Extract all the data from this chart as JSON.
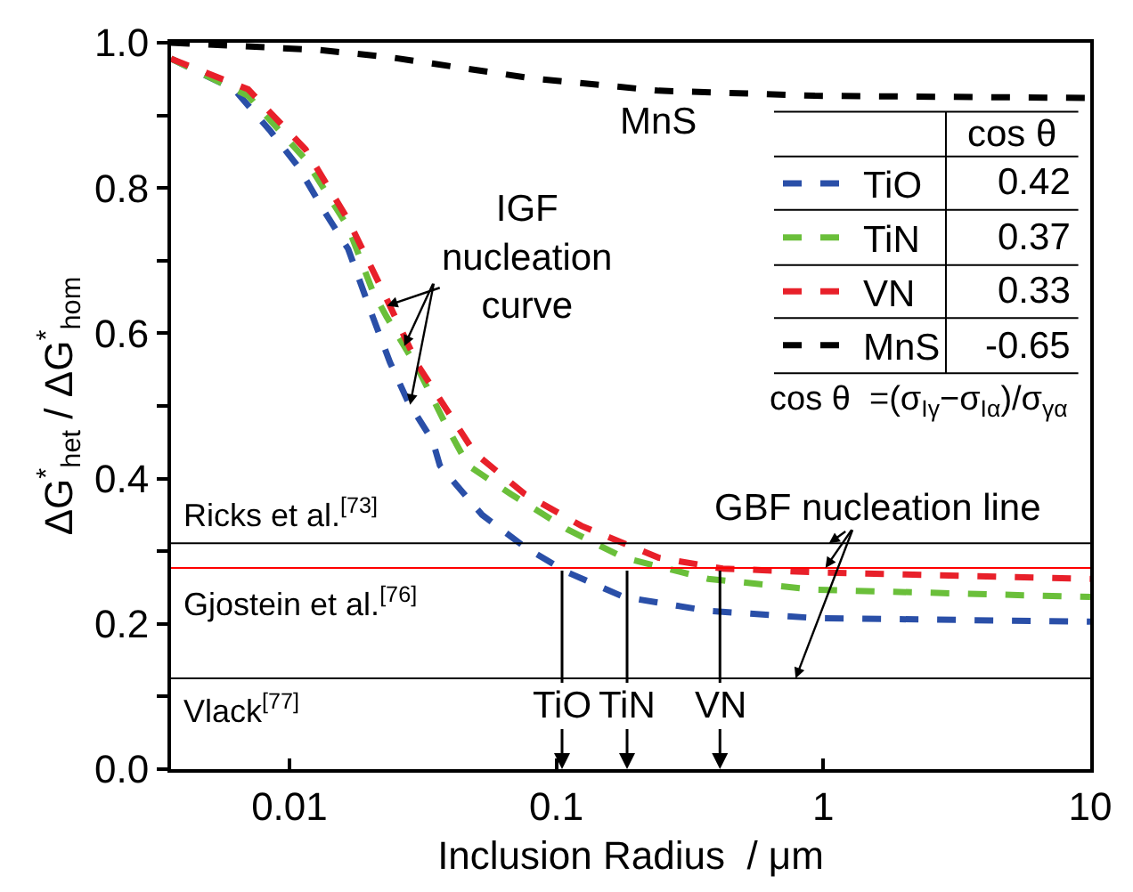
{
  "chart_data": {
    "type": "line",
    "xlabel": "Inclusion Radius  / μm",
    "ylabel": "ΔG$^{*}$$_{het}$ / ΔG$^{*}$$_{hom}$",
    "log": "x",
    "line_style": "dashed",
    "legend": "top right",
    "legend_title": "cos θ",
    "xlim": [
      0.0036,
      10
    ],
    "xticks": [
      0.01,
      0.1,
      1,
      10
    ],
    "ylim": [
      0,
      1.0
    ],
    "yticks": [
      {
        "value": 0,
        "label": "0.0"
      },
      {
        "value": 0.1,
        "label": null
      },
      0.2,
      {
        "value": 0.3,
        "label": null
      },
      0.4,
      {
        "value": 0.5,
        "label": null
      },
      0.6,
      {
        "value": 0.7,
        "label": null
      },
      0.8,
      {
        "value": 0.9,
        "label": null
      },
      {
        "value": 1.0,
        "label": "1.0"
      }
    ],
    "series": [
      {
        "name": "TiO",
        "color": "#2a4fa8",
        "x": [
          0.0036,
          0.0062,
          0.0085,
          0.0108,
          0.0134,
          0.0166,
          0.0205,
          0.0238,
          0.0278,
          0.0344,
          0.0366,
          0.0527,
          0.076,
          0.11,
          0.179,
          0.37,
          0.93,
          10
        ],
        "values": [
          0.978,
          0.936,
          0.878,
          0.829,
          0.77,
          0.716,
          0.623,
          0.56,
          0.506,
          0.452,
          0.418,
          0.35,
          0.306,
          0.271,
          0.237,
          0.218,
          0.208,
          0.203
        ]
      },
      {
        "name": "TiN",
        "color": "#6abf3a",
        "x": [
          0.0036,
          0.007,
          0.0115,
          0.0166,
          0.0205,
          0.0231,
          0.0304,
          0.0388,
          0.0467,
          0.0673,
          0.11,
          0.179,
          0.37,
          0.93,
          10
        ],
        "values": [
          0.978,
          0.927,
          0.839,
          0.746,
          0.658,
          0.623,
          0.55,
          0.472,
          0.418,
          0.379,
          0.33,
          0.291,
          0.262,
          0.247,
          0.237
        ]
      },
      {
        "name": "VN",
        "color": "#e8202a",
        "x": [
          0.0036,
          0.007,
          0.0115,
          0.0166,
          0.0224,
          0.0304,
          0.0495,
          0.076,
          0.124,
          0.242,
          0.42,
          0.93,
          10
        ],
        "values": [
          0.978,
          0.936,
          0.853,
          0.756,
          0.658,
          0.555,
          0.435,
          0.379,
          0.335,
          0.291,
          0.276,
          0.271,
          0.262
        ]
      },
      {
        "name": "MnS",
        "color": "#000000",
        "x": [
          0.0036,
          0.013,
          0.0238,
          0.081,
          0.242,
          0.93,
          10
        ],
        "values": [
          1.0,
          0.99,
          0.98,
          0.951,
          0.934,
          0.927,
          0.924
        ]
      }
    ],
    "ref_lines": [
      {
        "axis": "y",
        "value": 0.311,
        "label": "Ricks et al.$^{[73]}$",
        "color": "#000000"
      },
      {
        "axis": "y",
        "value": 0.277,
        "label": "Gjostein et al.$^{[76]}$",
        "color": "#ff0000"
      },
      {
        "axis": "y",
        "value": 0.125,
        "label": "Vlack$^{[77]}$",
        "color": "#000000"
      }
    ],
    "annotations": [
      {
        "text": "MnS",
        "x": 0.242,
        "y": 0.934
      },
      {
        "text": "IGF\nnucleation\ncurve",
        "x": 0.0232,
        "y": 0.638
      },
      {
        "text": "GBF nucleation line",
        "x": 1.05,
        "y": 0.311
      },
      {
        "text": "TiO",
        "x": 0.105,
        "y": 0.277
      },
      {
        "text": "TiN",
        "x": 0.184,
        "y": 0.277
      },
      {
        "text": "VN",
        "x": 0.41,
        "y": 0.277
      },
      "0.42",
      "0.37",
      "0.33",
      "-0.65",
      "cos θ  =(σ$_{Iγ}$−σ$_{Iα}$)/σ$_{γα}$"
    ]
  }
}
